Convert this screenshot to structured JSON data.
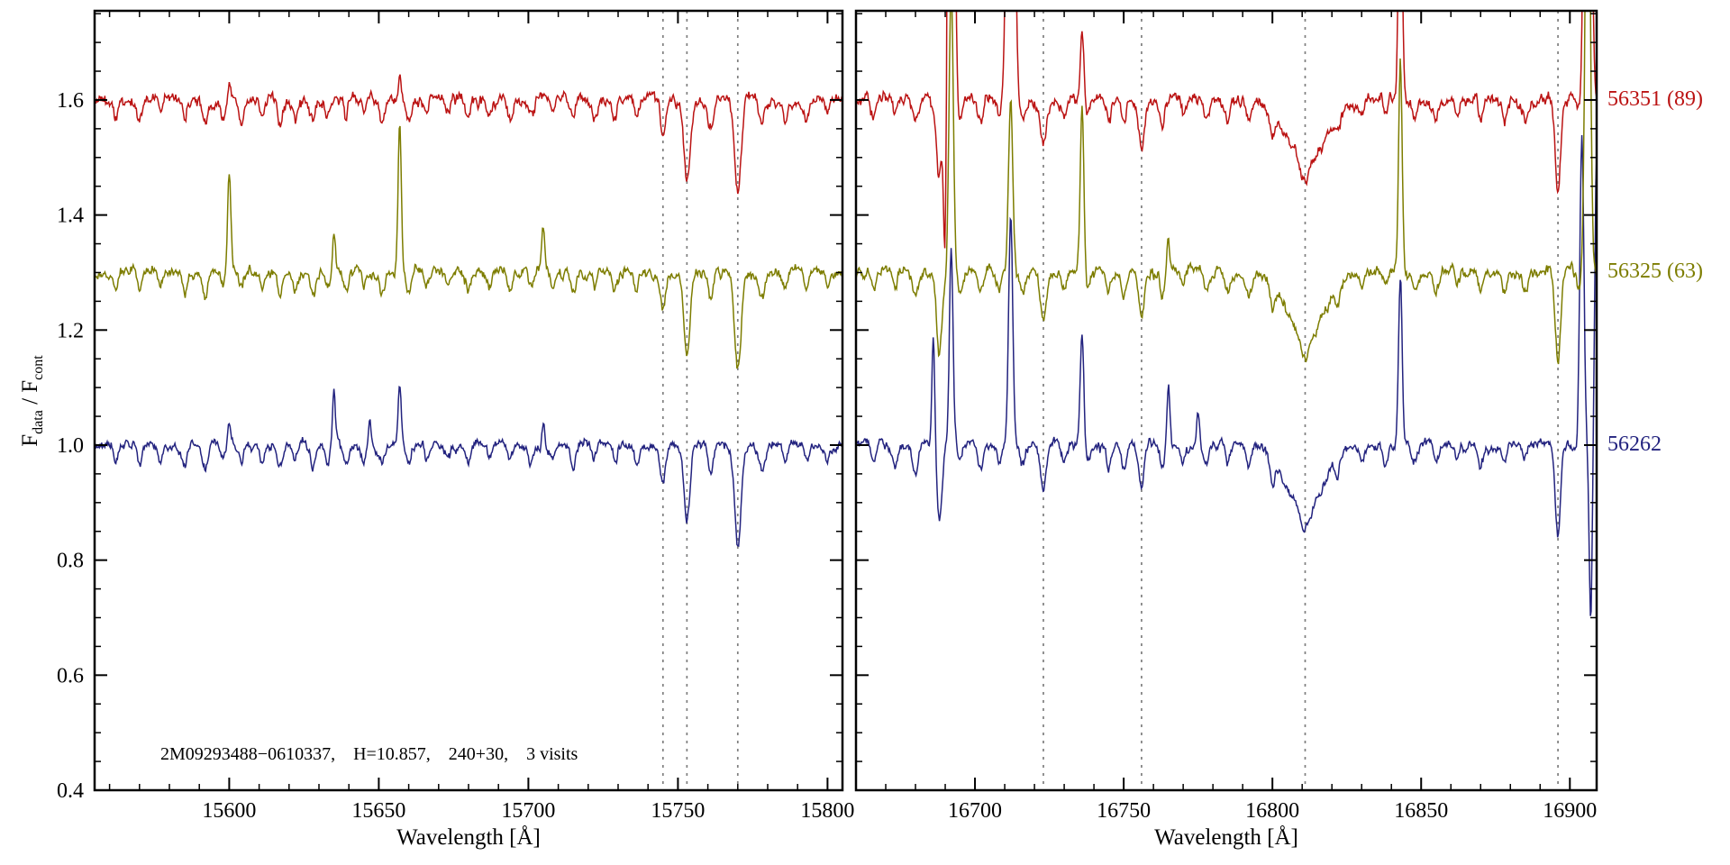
{
  "chart_data": {
    "type": "line",
    "title": "",
    "xlabel": "Wavelength [Å]",
    "ylabel": "F_data / F_cont",
    "ylabel_parts": {
      "pre": "F",
      "sub1": "data",
      "mid": " / F",
      "sub2": "cont"
    },
    "annotation": "2M09293488−0610337,    H=10.857,    240+30,    3 visits",
    "ylim": [
      0.4,
      1.755
    ],
    "yticks": [
      0.4,
      0.6,
      0.8,
      1.0,
      1.2,
      1.4,
      1.6
    ],
    "y_minor_step": 0.05,
    "x_minor_step": 10,
    "grid": "off",
    "legend_position": "right-outside",
    "dashed_line_color": "#7f7f7f",
    "series": [
      {
        "name": "56351 (89)",
        "color": "#bb1313",
        "offset": 1.6,
        "noise": 0.011
      },
      {
        "name": "56325 (63)",
        "color": "#7d7d00",
        "offset": 1.3,
        "noise": 0.01
      },
      {
        "name": "56262",
        "color": "#23237f",
        "offset": 1.0,
        "noise": 0.009
      }
    ],
    "panels": [
      {
        "xlim": [
          15555,
          15805
        ],
        "xticks": [
          15600,
          15650,
          15700,
          15750,
          15800
        ],
        "dashed_lines": [
          15745,
          15753,
          15770
        ],
        "absorption": [
          [
            15562,
            0.03,
            0.8
          ],
          [
            15570,
            0.035,
            0.8
          ],
          [
            15577,
            0.025,
            0.7
          ],
          [
            15585,
            0.03,
            0.8
          ],
          [
            15592,
            0.04,
            0.9
          ],
          [
            15598,
            0.03,
            0.7
          ],
          [
            15604,
            0.03,
            0.8
          ],
          [
            15611,
            0.025,
            0.7
          ],
          [
            15617,
            0.035,
            0.8
          ],
          [
            15622,
            0.03,
            0.7
          ],
          [
            15628,
            0.04,
            0.8
          ],
          [
            15633,
            0.035,
            0.8
          ],
          [
            15639,
            0.03,
            0.7
          ],
          [
            15645,
            0.025,
            0.7
          ],
          [
            15651,
            0.03,
            0.8
          ],
          [
            15660,
            0.035,
            0.9
          ],
          [
            15666,
            0.03,
            0.7
          ],
          [
            15673,
            0.025,
            0.7
          ],
          [
            15680,
            0.03,
            0.8
          ],
          [
            15687,
            0.025,
            0.7
          ],
          [
            15694,
            0.035,
            0.8
          ],
          [
            15701,
            0.03,
            0.8
          ],
          [
            15708,
            0.025,
            0.7
          ],
          [
            15715,
            0.03,
            0.8
          ],
          [
            15722,
            0.025,
            0.7
          ],
          [
            15729,
            0.03,
            0.8
          ],
          [
            15736,
            0.03,
            0.8
          ],
          [
            15745,
            0.06,
            0.9
          ],
          [
            15753,
            0.14,
            1.0
          ],
          [
            15761,
            0.05,
            0.9
          ],
          [
            15770,
            0.17,
            1.1
          ],
          [
            15778,
            0.04,
            0.9
          ],
          [
            15786,
            0.03,
            0.8
          ],
          [
            15793,
            0.03,
            0.8
          ],
          [
            15800,
            0.025,
            0.8
          ]
        ],
        "spikes": [
          [
            [
              15600,
              0.03,
              0.5
            ],
            [
              15657,
              0.05,
              0.5
            ]
          ],
          [
            [
              15600,
              0.17,
              0.55
            ],
            [
              15635,
              0.06,
              0.5
            ],
            [
              15657,
              0.26,
              0.55
            ],
            [
              15705,
              0.08,
              0.5
            ]
          ],
          [
            [
              15600,
              0.04,
              0.5
            ],
            [
              15635,
              0.1,
              0.5
            ],
            [
              15647,
              0.04,
              0.45
            ],
            [
              15657,
              0.1,
              0.5
            ],
            [
              15705,
              0.05,
              0.5
            ]
          ]
        ]
      },
      {
        "xlim": [
          16660,
          16909
        ],
        "xticks": [
          16700,
          16750,
          16800,
          16850,
          16900
        ],
        "dashed_lines": [
          16723,
          16756,
          16811,
          16896
        ],
        "absorption": [
          [
            16666,
            0.03,
            0.8
          ],
          [
            16673,
            0.03,
            0.8
          ],
          [
            16680,
            0.04,
            0.9
          ],
          [
            16688,
            0.13,
            0.9
          ],
          [
            16695,
            0.03,
            0.7
          ],
          [
            16702,
            0.045,
            0.8
          ],
          [
            16708,
            0.03,
            0.7
          ],
          [
            16716,
            0.03,
            0.8
          ],
          [
            16723,
            0.075,
            1.0
          ],
          [
            16730,
            0.03,
            0.8
          ],
          [
            16738,
            0.03,
            0.8
          ],
          [
            16745,
            0.035,
            0.8
          ],
          [
            16750,
            0.04,
            0.8
          ],
          [
            16756,
            0.08,
            0.9
          ],
          [
            16763,
            0.045,
            0.8
          ],
          [
            16770,
            0.03,
            0.8
          ],
          [
            16778,
            0.03,
            0.8
          ],
          [
            16785,
            0.03,
            0.8
          ],
          [
            16792,
            0.035,
            0.8
          ],
          [
            16800,
            0.04,
            0.9
          ],
          [
            16811,
            0.11,
            6.5
          ],
          [
            16811,
            0.035,
            1.4
          ],
          [
            16822,
            0.03,
            0.8
          ],
          [
            16830,
            0.03,
            0.8
          ],
          [
            16838,
            0.03,
            0.8
          ],
          [
            16848,
            0.03,
            0.8
          ],
          [
            16855,
            0.03,
            0.8
          ],
          [
            16862,
            0.025,
            0.7
          ],
          [
            16870,
            0.035,
            0.8
          ],
          [
            16878,
            0.03,
            0.8
          ],
          [
            16885,
            0.03,
            0.8
          ],
          [
            16896,
            0.16,
            0.9
          ],
          [
            16903,
            0.03,
            0.7
          ]
        ],
        "spikes": [
          [
            [
              16690,
              -0.3,
              0.5
            ],
            [
              16692,
              1.8,
              0.8
            ],
            [
              16712,
              2.0,
              0.9
            ],
            [
              16736,
              0.12,
              0.6
            ],
            [
              16843,
              0.5,
              0.6
            ],
            [
              16906,
              1.6,
              0.9
            ]
          ],
          [
            [
              16692,
              0.5,
              0.7
            ],
            [
              16712,
              0.3,
              0.7
            ],
            [
              16736,
              0.28,
              0.6
            ],
            [
              16765,
              0.06,
              0.5
            ],
            [
              16843,
              0.36,
              0.6
            ],
            [
              16906,
              0.9,
              0.8
            ]
          ],
          [
            [
              16686,
              0.2,
              0.5
            ],
            [
              16692,
              0.34,
              0.6
            ],
            [
              16712,
              0.4,
              0.7
            ],
            [
              16736,
              0.2,
              0.6
            ],
            [
              16765,
              0.1,
              0.5
            ],
            [
              16775,
              0.06,
              0.5
            ],
            [
              16843,
              0.3,
              0.6
            ],
            [
              16904,
              0.55,
              0.7
            ],
            [
              16907,
              -0.3,
              0.5
            ],
            [
              16909,
              0.5,
              0.6
            ]
          ]
        ]
      }
    ]
  }
}
